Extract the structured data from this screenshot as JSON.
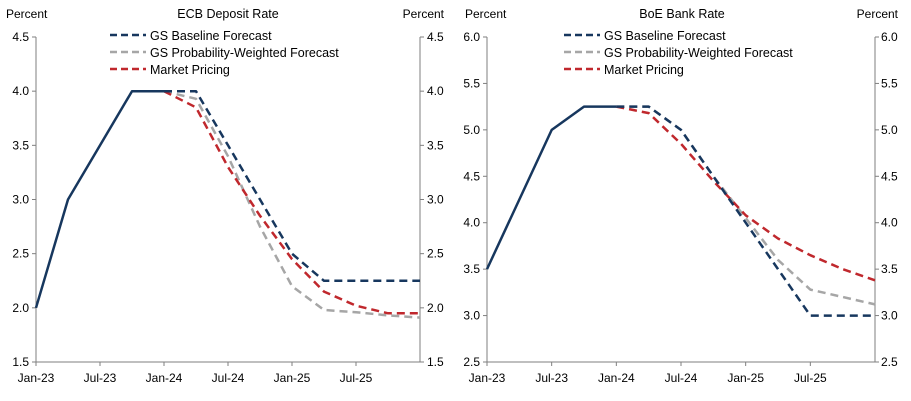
{
  "chart_data": [
    {
      "type": "line",
      "title": "ECB Deposit Rate",
      "ylabel_left": "Percent",
      "ylabel_right": "Percent",
      "ylim": [
        1.5,
        4.5
      ],
      "yticks": [
        "1.5",
        "2.0",
        "2.5",
        "3.0",
        "3.5",
        "4.0",
        "4.5"
      ],
      "xlim": [
        0,
        36
      ],
      "xticks": [
        {
          "label": "Jan-23",
          "x": 0
        },
        {
          "label": "Jul-23",
          "x": 6
        },
        {
          "label": "Jan-24",
          "x": 12
        },
        {
          "label": "Jul-24",
          "x": 18
        },
        {
          "label": "Jan-25",
          "x": 24
        },
        {
          "label": "Jul-25",
          "x": 30
        }
      ],
      "legend_position": "top-center",
      "series": [
        {
          "name": "Actual",
          "legend": false,
          "color": "#17375e",
          "dash": "solid",
          "points": [
            [
              0,
              2.0
            ],
            [
              3,
              3.0
            ],
            [
              9,
              4.0
            ],
            [
              12,
              4.0
            ]
          ]
        },
        {
          "name": "GS Baseline Forecast",
          "legend": true,
          "color": "#17375e",
          "dash": "dashed",
          "points": [
            [
              12,
              4.0
            ],
            [
              15,
              4.0
            ],
            [
              18,
              3.5
            ],
            [
              21,
              3.0
            ],
            [
              24,
              2.5
            ],
            [
              27,
              2.25
            ],
            [
              36,
              2.25
            ]
          ]
        },
        {
          "name": "GS Probability-Weighted Forecast",
          "legend": true,
          "color": "#a6a6a6",
          "dash": "dashed",
          "points": [
            [
              12,
              4.0
            ],
            [
              15,
              3.93
            ],
            [
              18,
              3.4
            ],
            [
              21,
              2.75
            ],
            [
              24,
              2.2
            ],
            [
              27,
              1.98
            ],
            [
              30,
              1.96
            ],
            [
              33,
              1.93
            ],
            [
              36,
              1.91
            ]
          ]
        },
        {
          "name": "Market Pricing",
          "legend": true,
          "color": "#c0282d",
          "dash": "dashed",
          "points": [
            [
              12,
              4.0
            ],
            [
              15,
              3.85
            ],
            [
              18,
              3.3
            ],
            [
              21,
              2.85
            ],
            [
              24,
              2.45
            ],
            [
              27,
              2.15
            ],
            [
              30,
              2.02
            ],
            [
              33,
              1.95
            ],
            [
              36,
              1.95
            ]
          ]
        }
      ]
    },
    {
      "type": "line",
      "title": "BoE Bank Rate",
      "ylabel_left": "Percent",
      "ylabel_right": "Percent",
      "ylim": [
        2.5,
        6.0
      ],
      "yticks": [
        "2.5",
        "3.0",
        "3.5",
        "4.0",
        "4.5",
        "5.0",
        "5.5",
        "6.0"
      ],
      "xlim": [
        0,
        36
      ],
      "xticks": [
        {
          "label": "Jan-23",
          "x": 0
        },
        {
          "label": "Jul-23",
          "x": 6
        },
        {
          "label": "Jan-24",
          "x": 12
        },
        {
          "label": "Jul-24",
          "x": 18
        },
        {
          "label": "Jan-25",
          "x": 24
        },
        {
          "label": "Jul-25",
          "x": 30
        }
      ],
      "legend_position": "top-center",
      "series": [
        {
          "name": "Actual",
          "legend": false,
          "color": "#17375e",
          "dash": "solid",
          "points": [
            [
              0,
              3.5
            ],
            [
              6,
              5.0
            ],
            [
              9,
              5.25
            ],
            [
              12,
              5.25
            ]
          ]
        },
        {
          "name": "GS Baseline Forecast",
          "legend": true,
          "color": "#17375e",
          "dash": "dashed",
          "points": [
            [
              12,
              5.25
            ],
            [
              15,
              5.25
            ],
            [
              18,
              5.0
            ],
            [
              21,
              4.5
            ],
            [
              24,
              4.0
            ],
            [
              27,
              3.5
            ],
            [
              30,
              3.0
            ],
            [
              36,
              3.0
            ]
          ]
        },
        {
          "name": "GS Probability-Weighted Forecast",
          "legend": true,
          "color": "#a6a6a6",
          "dash": "dashed",
          "points": [
            [
              12,
              5.25
            ],
            [
              15,
              5.25
            ],
            [
              18,
              5.0
            ],
            [
              21,
              4.5
            ],
            [
              24,
              4.05
            ],
            [
              27,
              3.6
            ],
            [
              30,
              3.28
            ],
            [
              33,
              3.2
            ],
            [
              36,
              3.12
            ]
          ]
        },
        {
          "name": "Market Pricing",
          "legend": true,
          "color": "#c0282d",
          "dash": "dashed",
          "points": [
            [
              12,
              5.25
            ],
            [
              15,
              5.18
            ],
            [
              18,
              4.85
            ],
            [
              21,
              4.45
            ],
            [
              24,
              4.08
            ],
            [
              27,
              3.83
            ],
            [
              30,
              3.65
            ],
            [
              33,
              3.5
            ],
            [
              36,
              3.38
            ]
          ]
        }
      ]
    }
  ]
}
